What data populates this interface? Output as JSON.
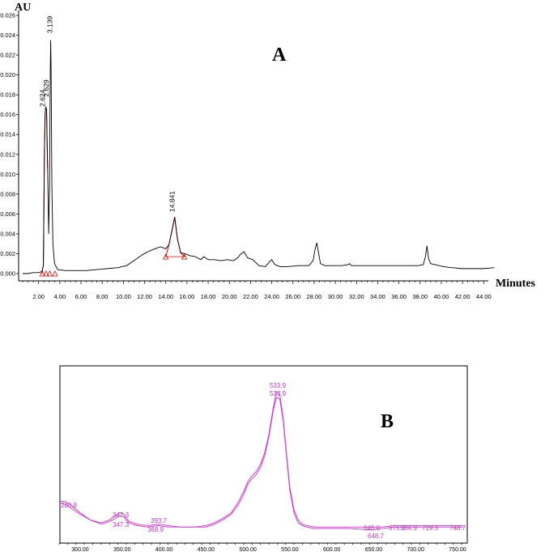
{
  "panel_a_label": "A",
  "panel_b_label": "B",
  "colors": {
    "trace": "#000000",
    "peak": "#e00000",
    "spectrum": "#d230d2"
  },
  "chart_data": [
    {
      "type": "line",
      "ylabel": "AU",
      "xlabel": "Minutes",
      "xlim": [
        0.5,
        45.2
      ],
      "ylim": [
        -0.0005,
        0.026
      ],
      "x_ticks": [
        "2.00",
        "4.00",
        "6.00",
        "8.00",
        "10.00",
        "12.00",
        "14.00",
        "16.00",
        "18.00",
        "20.00",
        "22.00",
        "24.00",
        "26.00",
        "28.00",
        "30.00",
        "32.00",
        "34.00",
        "36.00",
        "38.00",
        "40.00",
        "42.00",
        "44.00"
      ],
      "y_ticks": [
        "0.000",
        "0.002",
        "0.004",
        "0.006",
        "0.008",
        "0.010",
        "0.012",
        "0.014",
        "0.016",
        "0.018",
        "0.020",
        "0.022",
        "0.024",
        "0.026"
      ],
      "peak_labels": [
        "2.624",
        "2.629",
        "3.139",
        "14.841"
      ],
      "series": [
        {
          "x": [
            0.5,
            1.0,
            1.5,
            2.0,
            2.3,
            2.45,
            2.55,
            2.62,
            2.68,
            2.75,
            2.85,
            2.95,
            3.03,
            3.1,
            3.14,
            3.18,
            3.25,
            3.35,
            3.5,
            3.8,
            4.5,
            5.5,
            6.5,
            7.5,
            8.5,
            9.5,
            10.3,
            11.0,
            11.8,
            12.5,
            13.0,
            13.5,
            14.0,
            14.3,
            14.6,
            14.84,
            15.1,
            15.4,
            15.8,
            16.3,
            16.8,
            17.3,
            17.6,
            18.0,
            18.6,
            19.2,
            19.8,
            20.4,
            20.8,
            21.1,
            21.4,
            21.7,
            22.2,
            22.8,
            23.4,
            23.8,
            24.0,
            24.3,
            24.8,
            25.5,
            26.5,
            27.5,
            27.9,
            28.1,
            28.25,
            28.4,
            28.6,
            29.0,
            29.8,
            30.6,
            31.2,
            31.35,
            31.5,
            32.0,
            33.0,
            34.0,
            35.0,
            36.0,
            37.0,
            37.8,
            38.3,
            38.5,
            38.65,
            38.8,
            39.0,
            39.4,
            40.2,
            41.0,
            42.0,
            43.0,
            44.0,
            45.0
          ],
          "y": [
            0.0,
            0.0,
            0.0001,
            0.0001,
            0.0002,
            0.0008,
            0.0125,
            0.0162,
            0.0168,
            0.0165,
            0.0106,
            0.004,
            0.0087,
            0.0204,
            0.0235,
            0.0205,
            0.009,
            0.003,
            0.001,
            0.0004,
            0.0003,
            0.0003,
            0.0003,
            0.0004,
            0.0005,
            0.0006,
            0.0008,
            0.0013,
            0.0019,
            0.0023,
            0.0025,
            0.0027,
            0.0025,
            0.0029,
            0.0044,
            0.0057,
            0.0035,
            0.0021,
            0.002,
            0.0018,
            0.0017,
            0.0014,
            0.0017,
            0.0014,
            0.0014,
            0.0013,
            0.0014,
            0.0013,
            0.0016,
            0.002,
            0.0022,
            0.0016,
            0.0014,
            0.0008,
            0.0007,
            0.0012,
            0.0014,
            0.0009,
            0.0007,
            0.0007,
            0.0008,
            0.0008,
            0.0013,
            0.0025,
            0.0031,
            0.0022,
            0.001,
            0.0008,
            0.0008,
            0.0008,
            0.0009,
            0.001,
            0.0008,
            0.0008,
            0.0008,
            0.0008,
            0.0008,
            0.0008,
            0.0008,
            0.0008,
            0.0009,
            0.0017,
            0.0028,
            0.0015,
            0.001,
            0.0009,
            0.0007,
            0.0006,
            0.0005,
            0.0005,
            0.0005,
            0.0006
          ]
        }
      ]
    },
    {
      "type": "line",
      "xlim": [
        275,
        757
      ],
      "x_ticks": [
        "300.00",
        "350.00",
        "400.00",
        "450.00",
        "500.00",
        "550.00",
        "600.00",
        "650.00",
        "700.00",
        "750.00"
      ],
      "peak_labels": [
        "280.8",
        "347.3",
        "347.3",
        "393.7",
        "368.9",
        "533.9",
        "533.9",
        "646.0",
        "648.7",
        "675.3",
        "694.9",
        "719.3",
        "748.7"
      ],
      "series": [
        {
          "x": [
            275,
            282,
            290,
            300,
            312,
            325,
            335,
            342,
            347,
            352,
            358,
            368,
            380,
            393,
            405,
            420,
            435,
            450,
            460,
            470,
            480,
            488,
            495,
            500,
            505,
            510,
            515,
            520,
            525,
            530,
            534,
            538,
            542,
            546,
            550,
            555,
            560,
            565,
            570,
            580,
            600,
            620,
            646,
            660,
            675,
            690,
            695,
            710,
            719,
            735,
            749,
            757
          ],
          "y": [
            0.23,
            0.23,
            0.2,
            0.15,
            0.1,
            0.08,
            0.1,
            0.13,
            0.15,
            0.14,
            0.09,
            0.07,
            0.06,
            0.07,
            0.06,
            0.05,
            0.05,
            0.06,
            0.08,
            0.11,
            0.15,
            0.22,
            0.3,
            0.37,
            0.41,
            0.44,
            0.49,
            0.57,
            0.7,
            0.88,
            1.0,
            0.98,
            0.82,
            0.57,
            0.33,
            0.17,
            0.1,
            0.07,
            0.06,
            0.05,
            0.05,
            0.05,
            0.05,
            0.05,
            0.06,
            0.06,
            0.06,
            0.06,
            0.06,
            0.06,
            0.06,
            0.06
          ]
        },
        {
          "x": [
            275,
            282,
            290,
            300,
            312,
            325,
            335,
            342,
            347,
            352,
            358,
            368,
            380,
            393,
            405,
            420,
            435,
            450,
            460,
            470,
            480,
            488,
            495,
            500,
            505,
            510,
            515,
            520,
            525,
            530,
            534,
            538,
            542,
            546,
            550,
            555,
            560,
            565,
            570,
            580,
            600,
            620,
            646,
            660,
            675,
            690,
            695,
            710,
            719,
            735,
            749,
            757
          ],
          "y": [
            0.22,
            0.21,
            0.18,
            0.14,
            0.1,
            0.07,
            0.09,
            0.11,
            0.13,
            0.12,
            0.08,
            0.06,
            0.05,
            0.06,
            0.05,
            0.05,
            0.05,
            0.05,
            0.07,
            0.1,
            0.14,
            0.2,
            0.28,
            0.35,
            0.39,
            0.42,
            0.47,
            0.55,
            0.68,
            0.86,
            0.96,
            0.95,
            0.8,
            0.55,
            0.31,
            0.15,
            0.08,
            0.06,
            0.05,
            0.04,
            0.04,
            0.04,
            0.03,
            0.04,
            0.05,
            0.05,
            0.05,
            0.05,
            0.05,
            0.05,
            0.05,
            0.05
          ]
        }
      ]
    }
  ]
}
